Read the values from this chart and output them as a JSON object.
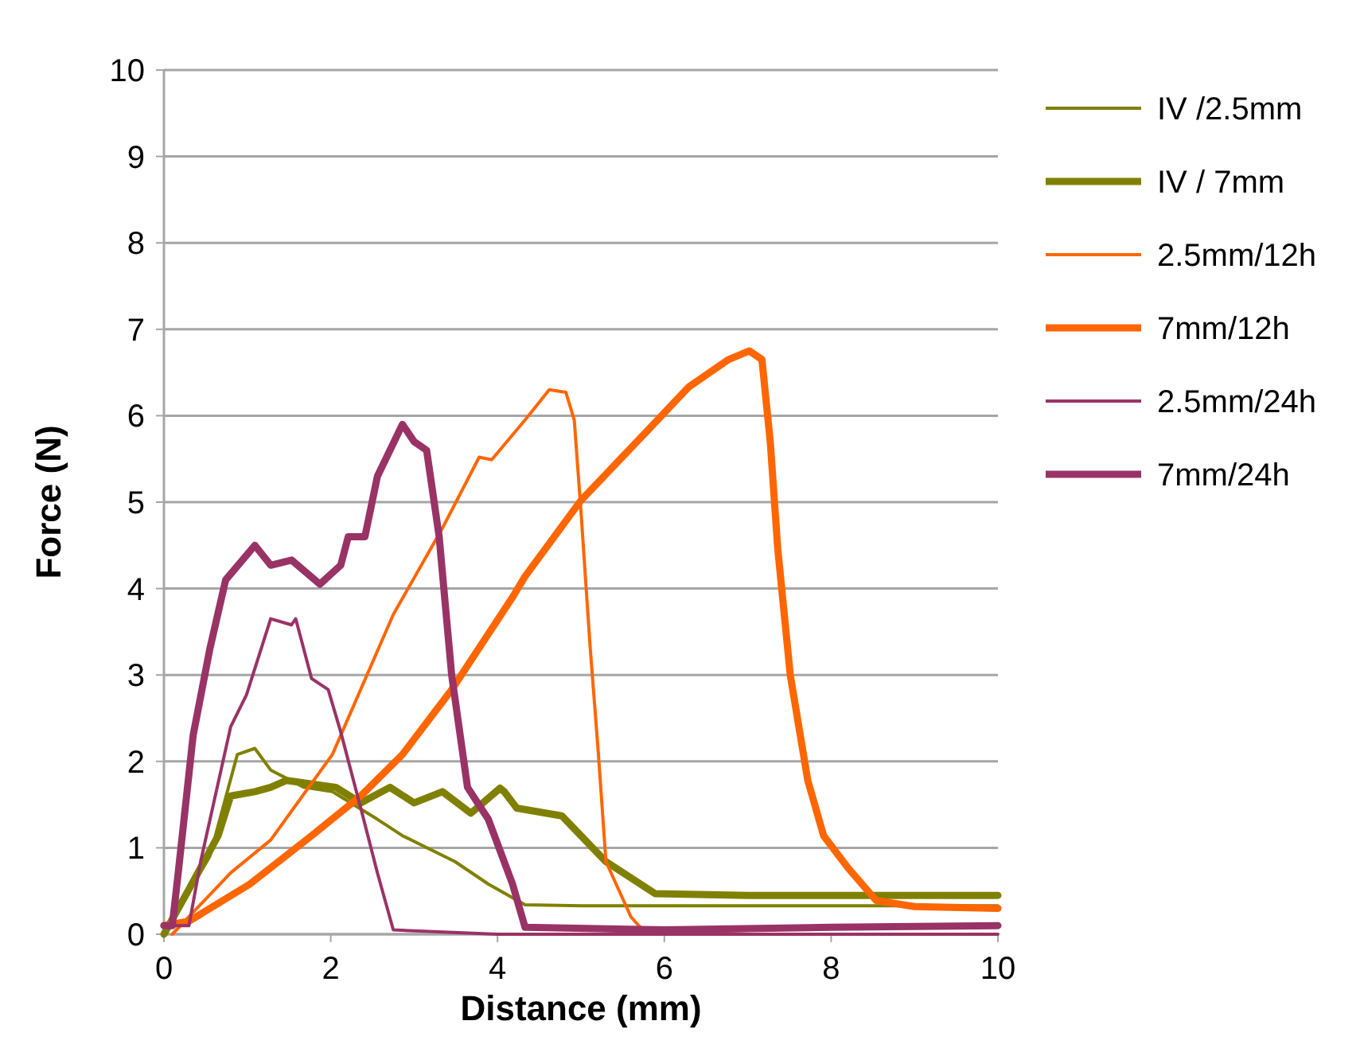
{
  "chart_data": {
    "type": "line",
    "xlabel": "Distance (mm)",
    "ylabel": "Force (N)",
    "xlim": [
      0,
      10
    ],
    "ylim": [
      0,
      10
    ],
    "xticks": [
      0,
      2,
      4,
      6,
      8,
      10
    ],
    "yticks": [
      0,
      1,
      2,
      3,
      4,
      5,
      6,
      7,
      8,
      9,
      10
    ],
    "grid": "y",
    "legend": "right",
    "line_style": "solid",
    "series": [
      {
        "name": "IV /2.5mm",
        "color": "#808000",
        "x": [
          0,
          0.55,
          0.88,
          1.09,
          1.28,
          1.68,
          2.02,
          2.56,
          2.86,
          3.49,
          3.89,
          4.33,
          5,
          6,
          7,
          8,
          9,
          10
        ],
        "values": [
          0,
          0.9,
          2.08,
          2.15,
          1.9,
          1.7,
          1.65,
          1.33,
          1.14,
          0.84,
          0.58,
          0.34,
          0.33,
          0.33,
          0.33,
          0.33,
          0.33,
          0.33
        ]
      },
      {
        "name": "IV / 7mm",
        "color": "#808000",
        "x": [
          0,
          0.3,
          0.65,
          0.8,
          1.09,
          1.28,
          1.47,
          2.06,
          2.36,
          2.71,
          3,
          3.34,
          3.68,
          4.03,
          4.08,
          4.23,
          4.77,
          5.3,
          5.89,
          7,
          8,
          9,
          10
        ],
        "values": [
          0,
          0.52,
          1.14,
          1.6,
          1.65,
          1.7,
          1.78,
          1.7,
          1.52,
          1.7,
          1.52,
          1.65,
          1.4,
          1.69,
          1.65,
          1.46,
          1.37,
          0.84,
          0.47,
          0.45,
          0.45,
          0.45,
          0.45
        ]
      },
      {
        "name": "2.5mm/12h",
        "color": "#ff6600",
        "x": [
          0.1,
          0.8,
          1.28,
          2.02,
          2.75,
          3.34,
          3.78,
          3.93,
          4.33,
          4.62,
          4.82,
          4.92,
          5,
          5.11,
          5.21,
          5.3,
          5.6,
          5.74,
          7
        ],
        "values": [
          0,
          0.71,
          1.09,
          2.08,
          3.7,
          4.7,
          5.52,
          5.49,
          5.95,
          6.3,
          6.27,
          5.95,
          4.9,
          3.33,
          2.08,
          0.84,
          0.2,
          0.05,
          0
        ]
      },
      {
        "name": "7mm/12h",
        "color": "#ff6600",
        "x": [
          0,
          0.3,
          1.03,
          1.77,
          2.36,
          2.86,
          3.45,
          4.18,
          4.33,
          5,
          5.8,
          6.29,
          6.77,
          7.02,
          7.17,
          7.27,
          7.36,
          7.51,
          7.72,
          7.91,
          8.2,
          8.54,
          9,
          10
        ],
        "values": [
          0.1,
          0.15,
          0.58,
          1.14,
          1.6,
          2.08,
          2.83,
          3.9,
          4.14,
          5.02,
          5.83,
          6.33,
          6.65,
          6.75,
          6.65,
          5.7,
          4.46,
          3,
          1.78,
          1.14,
          0.77,
          0.39,
          0.32,
          0.3
        ]
      },
      {
        "name": "2.5mm/24h",
        "color": "#993366",
        "x": [
          0,
          0.3,
          0.44,
          0.8,
          0.99,
          1.28,
          1.53,
          1.58,
          1.77,
          1.97,
          2.12,
          2.36,
          2.56,
          2.75,
          4,
          6,
          8,
          10
        ],
        "values": [
          0.1,
          0.1,
          0.84,
          2.4,
          2.77,
          3.65,
          3.58,
          3.65,
          2.96,
          2.83,
          2.34,
          1.46,
          0.71,
          0.05,
          0,
          0,
          0,
          0
        ]
      },
      {
        "name": "7mm/24h",
        "color": "#993366",
        "x": [
          0,
          0.1,
          0.17,
          0.35,
          0.55,
          0.74,
          1.09,
          1.28,
          1.53,
          1.87,
          2.12,
          2.21,
          2.41,
          2.56,
          2.86,
          3,
          3.15,
          3.3,
          3.45,
          3.64,
          3.89,
          4.18,
          4.33,
          6,
          8,
          10
        ],
        "values": [
          0.1,
          0.1,
          0.7,
          2.3,
          3.3,
          4.1,
          4.5,
          4.27,
          4.33,
          4.05,
          4.27,
          4.6,
          4.6,
          5.3,
          5.9,
          5.7,
          5.6,
          4.6,
          3,
          1.7,
          1.33,
          0.58,
          0.08,
          0.05,
          0.08,
          0.1
        ]
      }
    ]
  }
}
